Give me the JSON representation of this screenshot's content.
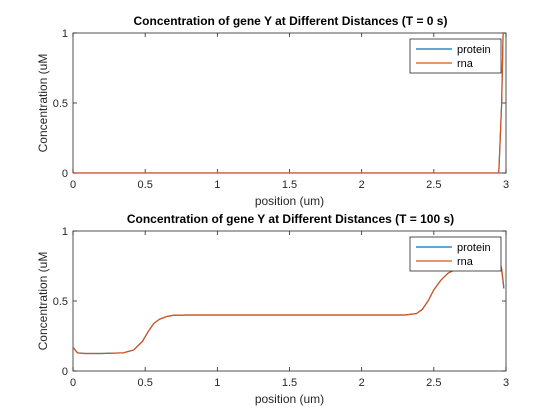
{
  "chart_data": [
    {
      "type": "line",
      "title": "Concentration of gene Y at Different Distances (T = 0 s)",
      "xlabel": "position (um)",
      "ylabel": "Concentration (uM",
      "xlim": [
        0,
        3
      ],
      "ylim": [
        0,
        1
      ],
      "xticks": [
        "0",
        "0.5",
        "1",
        "1.5",
        "2",
        "2.5",
        "3"
      ],
      "yticks": [
        "0",
        "0.5",
        "1"
      ],
      "legend_position": "top-right",
      "series": [
        {
          "name": "protein",
          "color": "#0072BD",
          "x": [
            0,
            0.5,
            1.0,
            1.5,
            2.0,
            2.5,
            2.95,
            2.97,
            2.98
          ],
          "y": [
            0,
            0,
            0,
            0,
            0,
            0,
            0,
            0.5,
            1.0
          ]
        },
        {
          "name": "rna",
          "color": "#D95319",
          "x": [
            0,
            0.5,
            1.0,
            1.5,
            2.0,
            2.5,
            2.95,
            2.97,
            2.98
          ],
          "y": [
            0,
            0,
            0,
            0,
            0,
            0,
            0,
            0.5,
            1.0
          ]
        }
      ]
    },
    {
      "type": "line",
      "title": "Concentration of gene Y at Different Distances (T = 100 s)",
      "xlabel": "position (um)",
      "ylabel": "Concentration (uM",
      "xlim": [
        0,
        3
      ],
      "ylim": [
        0,
        1
      ],
      "xticks": [
        "0",
        "0.5",
        "1",
        "1.5",
        "2",
        "2.5",
        "3"
      ],
      "yticks": [
        "0",
        "0.5",
        "1"
      ],
      "legend_position": "top-right",
      "series": [
        {
          "name": "protein",
          "color": "#0072BD",
          "x": [
            0,
            0.03,
            0.08,
            0.2,
            0.35,
            0.42,
            0.48,
            0.52,
            0.56,
            0.6,
            0.65,
            0.7,
            0.8,
            1.0,
            1.5,
            2.0,
            2.3,
            2.38,
            2.42,
            2.46,
            2.5,
            2.55,
            2.6,
            2.7,
            2.8,
            2.88,
            2.92,
            2.95,
            2.97,
            2.985
          ],
          "y": [
            0.17,
            0.13,
            0.125,
            0.125,
            0.13,
            0.15,
            0.21,
            0.28,
            0.34,
            0.37,
            0.39,
            0.398,
            0.4,
            0.4,
            0.4,
            0.4,
            0.4,
            0.41,
            0.44,
            0.5,
            0.58,
            0.65,
            0.7,
            0.75,
            0.79,
            0.82,
            0.85,
            0.8,
            0.72,
            0.59
          ]
        },
        {
          "name": "rna",
          "color": "#D95319",
          "x": [
            0,
            0.03,
            0.08,
            0.2,
            0.35,
            0.42,
            0.48,
            0.52,
            0.56,
            0.6,
            0.65,
            0.7,
            0.8,
            1.0,
            1.5,
            2.0,
            2.3,
            2.38,
            2.42,
            2.46,
            2.5,
            2.55,
            2.6,
            2.7,
            2.8,
            2.88,
            2.92,
            2.95,
            2.97,
            2.985
          ],
          "y": [
            0.17,
            0.13,
            0.125,
            0.125,
            0.13,
            0.15,
            0.21,
            0.28,
            0.34,
            0.37,
            0.39,
            0.398,
            0.4,
            0.4,
            0.4,
            0.4,
            0.4,
            0.41,
            0.44,
            0.5,
            0.58,
            0.65,
            0.7,
            0.75,
            0.79,
            0.82,
            0.85,
            0.81,
            0.73,
            0.6
          ]
        }
      ]
    }
  ]
}
